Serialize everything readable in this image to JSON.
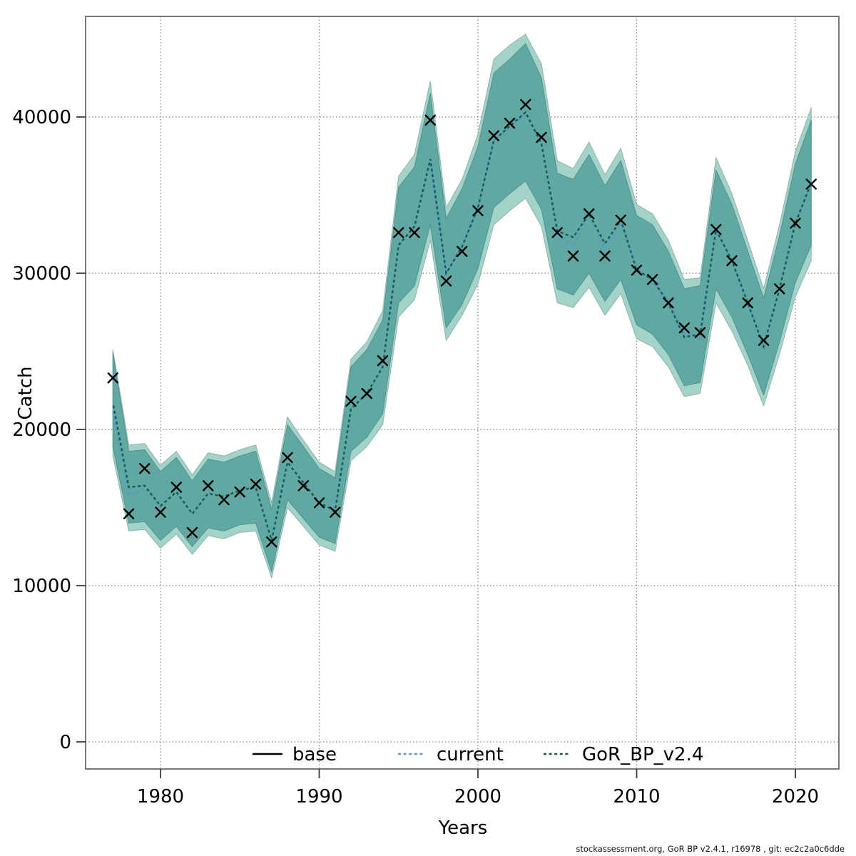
{
  "figure": {
    "footer": "stockassessment.org, GoR BP v2.4.1, r16978 , git: ec2c2a0c6dde"
  },
  "chart_data": {
    "type": "line",
    "title": "",
    "xlabel": "Years",
    "ylabel": "Catch",
    "x_ticks": [
      1980,
      1990,
      2000,
      2010,
      2020
    ],
    "y_ticks": [
      0,
      10000,
      20000,
      30000,
      40000
    ],
    "xlim": [
      1975.3,
      2022.8
    ],
    "ylim": [
      -1700,
      46400
    ],
    "grid": true,
    "legend_position": "bottom-inside",
    "years": [
      1977,
      1978,
      1979,
      1980,
      1981,
      1982,
      1983,
      1984,
      1985,
      1986,
      1987,
      1988,
      1989,
      1990,
      1991,
      1992,
      1993,
      1994,
      1995,
      1996,
      1997,
      1998,
      1999,
      2000,
      2001,
      2002,
      2003,
      2004,
      2005,
      2006,
      2007,
      2008,
      2009,
      2010,
      2011,
      2012,
      2013,
      2014,
      2015,
      2016,
      2017,
      2018,
      2019,
      2020,
      2021
    ],
    "observed_catch": [
      23300,
      14600,
      17500,
      14700,
      16300,
      13400,
      16400,
      15500,
      16000,
      16500,
      12800,
      18200,
      16400,
      15300,
      14700,
      21800,
      22300,
      24400,
      32600,
      32600,
      39800,
      29500,
      31400,
      34000,
      38800,
      39600,
      40800,
      38700,
      32600,
      31100,
      33800,
      31100,
      33400,
      30200,
      29600,
      28100,
      26500,
      26200,
      32800,
      30800,
      28100,
      25700,
      29000,
      33200,
      35700
    ],
    "series": [
      {
        "name": "base",
        "line": "solid",
        "color": "#000000",
        "visible_in_plot": false,
        "values": [
          21700,
          16300,
          16400,
          15100,
          16000,
          14600,
          15900,
          15700,
          16100,
          16300,
          12900,
          17900,
          16600,
          15300,
          14800,
          21300,
          22300,
          24000,
          31800,
          33000,
          37300,
          30000,
          31700,
          34200,
          38500,
          39400,
          40300,
          38300,
          32700,
          32300,
          33800,
          31900,
          33400,
          30200,
          29600,
          28100,
          25900,
          26100,
          32800,
          30800,
          28100,
          25300,
          29000,
          33200,
          35800
        ]
      },
      {
        "name": "current",
        "line": "dotted",
        "color": "#4f9dc9",
        "values": [
          21100,
          15800,
          16200,
          15100,
          16000,
          14600,
          15900,
          15700,
          16100,
          16300,
          12900,
          17900,
          16500,
          15300,
          14800,
          21300,
          22300,
          23900,
          31700,
          32900,
          37200,
          30000,
          31700,
          34200,
          38500,
          39300,
          40200,
          38200,
          32500,
          31700,
          33700,
          31500,
          33300,
          30200,
          29600,
          28100,
          26200,
          25800,
          32700,
          30800,
          28100,
          25400,
          29000,
          33200,
          35700
        ],
        "ci_hi": [
          25100,
          19000,
          19100,
          17700,
          18600,
          17100,
          18500,
          18300,
          18700,
          19000,
          15300,
          20800,
          19300,
          17900,
          17300,
          24500,
          25600,
          27600,
          36200,
          37600,
          42300,
          34200,
          36000,
          38900,
          43700,
          44600,
          45300,
          43400,
          37200,
          36700,
          38400,
          36300,
          38000,
          34400,
          33800,
          32100,
          29600,
          29700,
          37400,
          35100,
          32100,
          29000,
          33100,
          37800,
          40600
        ],
        "ci_lo": [
          18300,
          13500,
          13600,
          12400,
          13300,
          12000,
          13200,
          13000,
          13400,
          13500,
          10500,
          15000,
          13800,
          12600,
          12200,
          18000,
          18900,
          20300,
          27200,
          28300,
          32100,
          25700,
          27300,
          29300,
          33100,
          34000,
          34800,
          33000,
          28100,
          27800,
          29100,
          27300,
          28700,
          25800,
          25300,
          24000,
          22100,
          22300,
          28100,
          26300,
          24100,
          21500,
          24800,
          28500,
          30800
        ],
        "ci_fill": "#a3d3c8"
      },
      {
        "name": "GoR_BP_v2.4",
        "line": "dotted",
        "color": "#175a52",
        "values": [
          21700,
          16300,
          16400,
          15100,
          16000,
          14600,
          15900,
          15700,
          16100,
          16300,
          12900,
          17900,
          16600,
          15300,
          14800,
          21300,
          22300,
          24000,
          31800,
          33000,
          37300,
          30000,
          31700,
          34200,
          38500,
          39400,
          40300,
          38300,
          32700,
          32300,
          33800,
          31900,
          33400,
          30200,
          29600,
          28100,
          25900,
          26100,
          32800,
          30800,
          28100,
          25300,
          29000,
          33200,
          35800
        ],
        "ci_hi": [
          24900,
          18600,
          18700,
          17300,
          18200,
          16700,
          18100,
          17900,
          18300,
          18600,
          14900,
          20300,
          18900,
          17500,
          16900,
          24000,
          25100,
          27000,
          35500,
          36800,
          41500,
          33500,
          35400,
          38100,
          42800,
          43700,
          44700,
          42500,
          36400,
          36000,
          37600,
          35600,
          37200,
          33700,
          33100,
          31400,
          29000,
          29200,
          36600,
          34400,
          31400,
          28400,
          32400,
          37000,
          39800
        ],
        "ci_lo": [
          18900,
          14000,
          14100,
          12900,
          13800,
          12500,
          13700,
          13500,
          13900,
          14000,
          10900,
          15500,
          14300,
          13100,
          12700,
          18600,
          19500,
          21000,
          28100,
          29200,
          33100,
          26500,
          28000,
          30300,
          34200,
          35100,
          35900,
          34100,
          29000,
          28600,
          30000,
          28200,
          29600,
          26700,
          26100,
          24800,
          22800,
          23000,
          29000,
          27200,
          24800,
          22200,
          25600,
          29400,
          31800
        ],
        "ci_fill": "#61a8a3"
      }
    ],
    "legend": {
      "items": [
        {
          "label": "base",
          "style": "solid",
          "color": "#000000"
        },
        {
          "label": "current",
          "style": "dotted",
          "color": "#4f9dc9"
        },
        {
          "label": "GoR_BP_v2.4",
          "style": "dotted",
          "color": "#175a52"
        }
      ]
    },
    "marker": {
      "shape": "x-cross",
      "color": "#000000"
    }
  }
}
